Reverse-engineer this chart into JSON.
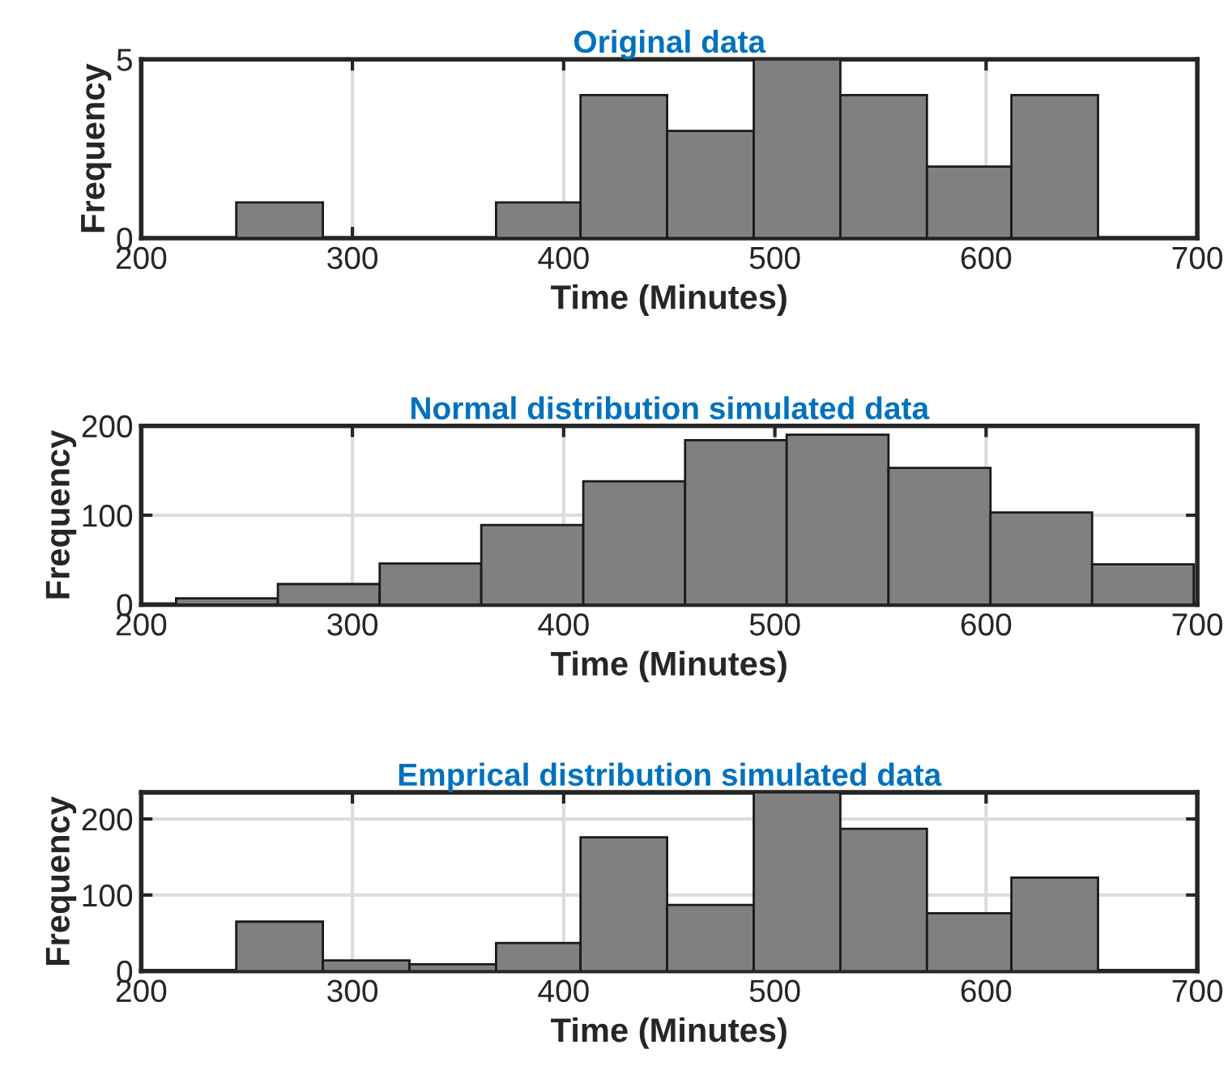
{
  "chart_data": [
    {
      "type": "histogram",
      "title": "Original data",
      "xlabel": "Time (Minutes)",
      "ylabel": "Frequency",
      "color": "#808080",
      "bins": [
        245,
        286,
        368,
        408,
        449,
        490,
        531,
        572,
        612,
        653
      ],
      "values": [
        1,
        0,
        1,
        4,
        3,
        5,
        4,
        2,
        4
      ],
      "xlim": [
        200,
        700
      ],
      "xticks": [
        200,
        300,
        400,
        500,
        600,
        700
      ],
      "ylim": [
        0,
        5
      ],
      "yticks": [
        0,
        5
      ],
      "grid": true
    },
    {
      "type": "histogram",
      "title": "Normal distribution simulated data",
      "xlabel": "Time (Minutes)",
      "ylabel": "Frequency",
      "color": "#808080",
      "bins": [
        216.5,
        264.7,
        312.9,
        361,
        409.3,
        457.5,
        505.6,
        553.8,
        602.1,
        650.2,
        698.3
      ],
      "values": [
        7,
        23,
        46,
        89,
        138,
        184,
        190,
        153,
        103,
        45
      ],
      "xlim": [
        200,
        700
      ],
      "xticks": [
        200,
        300,
        400,
        500,
        600,
        700
      ],
      "ylim": [
        0,
        200
      ],
      "yticks": [
        0,
        100,
        200
      ],
      "grid": true
    },
    {
      "type": "histogram",
      "title": "Emprical distribution simulated data",
      "xlabel": "Time (Minutes)",
      "ylabel": "Frequency",
      "color": "#808080",
      "bins": [
        245,
        286,
        327,
        368,
        408,
        449,
        490,
        531,
        572,
        612,
        653
      ],
      "values": [
        65,
        14,
        9,
        37,
        176,
        87,
        235,
        187,
        76,
        123
      ],
      "xlim": [
        200,
        700
      ],
      "xticks": [
        200,
        300,
        400,
        500,
        600,
        700
      ],
      "ylim": [
        0,
        235
      ],
      "yticks": [
        0,
        100,
        200
      ],
      "grid": true
    }
  ]
}
